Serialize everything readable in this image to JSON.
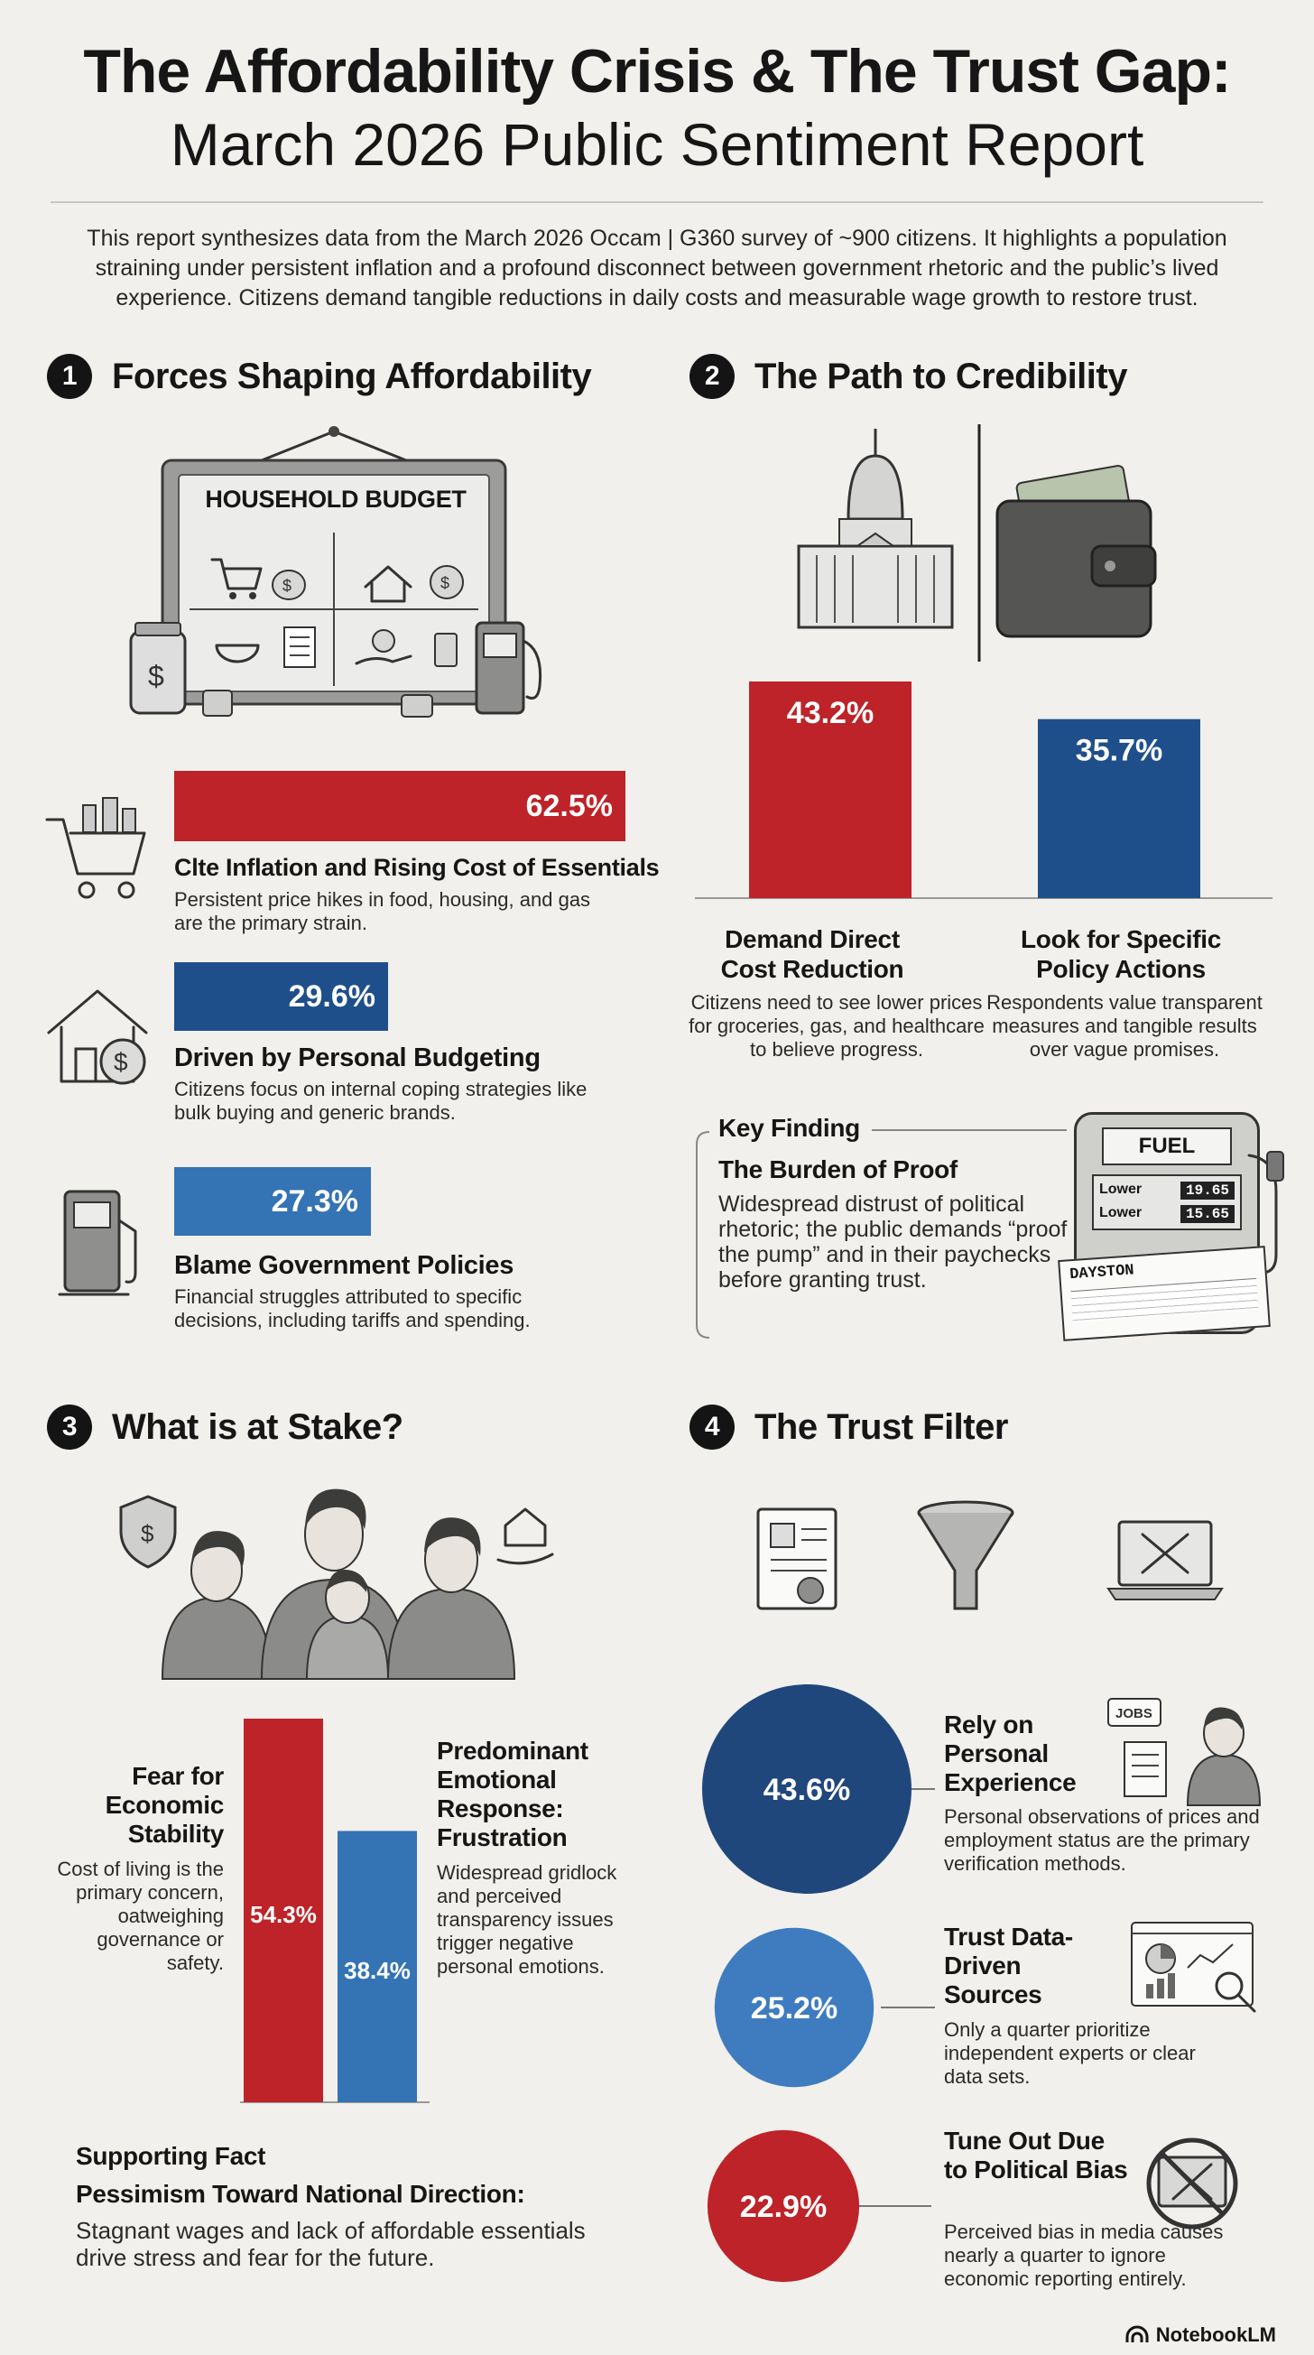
{
  "header": {
    "title_line1": "The Affordability Crisis & The Trust Gap:",
    "title_line2": "March 2026 Public Sentiment Report",
    "intro": "This report synthesizes data from the March 2026 Occam | G360 survey of ~900 citizens. It highlights a population straining under persistent inflation and a profound disconnect between government rhetoric and the public’s lived experience. Citizens demand tangible reductions in daily costs and measurable wage growth to restore trust."
  },
  "colors": {
    "red": "#bd2328",
    "navy": "#1f4f8a",
    "blue": "#3473b4",
    "mid_blue": "#3e7cbf",
    "dark_navy": "#20477c"
  },
  "section1": {
    "number": "1",
    "title": "Forces Shaping Affordability",
    "budget_board_label": "HOUSEHOLD BUDGET",
    "items": [
      {
        "value_label": "62.5%",
        "heading": "Clte Inflation and Rising Cost of Essentials",
        "text": "Persistent price hikes in food, housing, and gas are the primary strain."
      },
      {
        "value_label": "29.6%",
        "heading": "Driven by Personal Budgeting",
        "text": "Citizens focus on internal coping strategies like bulk buying and generic brands."
      },
      {
        "value_label": "27.3%",
        "heading": "Blame Government Policies",
        "text": "Financial struggles attributed to specific decisions, including tariffs and spending."
      }
    ]
  },
  "section2": {
    "number": "2",
    "title": "The Path to Credibility",
    "bars": [
      {
        "value_label": "43.2%",
        "heading": "Demand Direct Cost Reduction",
        "text": "Citizens need to see lower prices for groceries, gas, and healthcare to believe progress."
      },
      {
        "value_label": "35.7%",
        "heading": "Look for Specific Policy Actions",
        "text": "Respondents value transparent measures and tangible results over vague promises."
      }
    ],
    "key_finding": {
      "label": "Key Finding",
      "heading": "The Burden of Proof",
      "text": "Widespread distrust of political rhetoric; the public demands “proof at the pump” and in their paychecks before granting trust."
    },
    "pump": {
      "sign": "FUEL",
      "rows": [
        {
          "label": "Lower",
          "value": "19.65"
        },
        {
          "label": "Lower",
          "value": "15.65"
        }
      ],
      "paycheck_label": "DAYSTON"
    }
  },
  "section3": {
    "number": "3",
    "title": "What is at Stake?",
    "left": {
      "heading": "Fear for Economic Stability",
      "text": "Cost of living is the primary concern, oatweighing governance or safety."
    },
    "right": {
      "heading": "Predominant Emotional Response: Frustration",
      "text": "Widespread gridlock and perceived transparency issues trigger negative personal emotions."
    },
    "supporting": {
      "label": "Supporting Fact",
      "heading": "Pessimism Toward National Direction:",
      "text": "Stagnant wages and lack of affordable essentials drive stress and fear for the future."
    }
  },
  "section4": {
    "number": "4",
    "title": "The Trust Filter",
    "items": [
      {
        "value_label": "43.6%",
        "heading": "Rely on Personal Experience",
        "text": "Personal observations of prices and employment status are the primary verification methods.",
        "icon_label": "JOBS"
      },
      {
        "value_label": "25.2%",
        "heading": "Trust Data-Driven Sources",
        "text": "Only a quarter prioritize independent experts or clear data sets."
      },
      {
        "value_label": "22.9%",
        "heading": "Tune Out Due to Political Bias",
        "text": "Perceived bias in media causes nearly a quarter to ignore economic reporting entirely."
      }
    ]
  },
  "footer": {
    "brand": "NotebookLM"
  },
  "chart_data": [
    {
      "type": "bar",
      "orientation": "horizontal",
      "categories": [
        "Clte Inflation and Rising Cost of Essentials",
        "Driven by Personal Budgeting",
        "Blame Government Policies"
      ],
      "values": [
        62.5,
        29.6,
        27.3
      ],
      "unit": "%"
    },
    {
      "type": "bar",
      "orientation": "vertical",
      "categories": [
        "Demand Direct Cost Reduction",
        "Look for Specific Policy Actions"
      ],
      "values": [
        43.2,
        35.7
      ],
      "unit": "%"
    },
    {
      "type": "bar",
      "orientation": "vertical",
      "categories": [
        "Fear for Economic Stability",
        "Predominant Emotional Response: Frustration"
      ],
      "values": [
        54.3,
        38.4
      ],
      "value_labels": [
        "54.3%",
        "38.4%"
      ],
      "unit": "%"
    },
    {
      "type": "bubble",
      "categories": [
        "Rely on Personal Experience",
        "Trust Data-Driven Sources",
        "Tune Out Due to Political Bias"
      ],
      "values": [
        43.6,
        25.2,
        22.9
      ],
      "unit": "%"
    }
  ]
}
